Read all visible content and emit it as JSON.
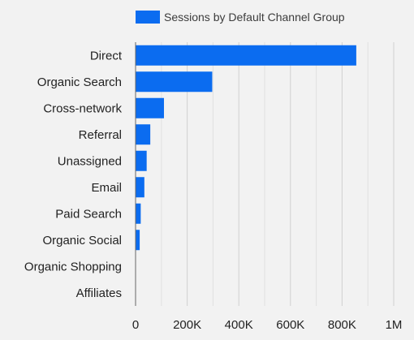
{
  "chart_data": {
    "type": "bar",
    "orientation": "horizontal",
    "title": "",
    "xlabel": "",
    "ylabel": "",
    "legend": {
      "placement": "top",
      "entries": [
        "Sessions by Default Channel Group"
      ]
    },
    "grid": true,
    "categories": [
      "Direct",
      "Organic Search",
      "Cross-network",
      "Referral",
      "Unassigned",
      "Email",
      "Paid Search",
      "Organic Social",
      "Organic Shopping",
      "Affiliates"
    ],
    "series": [
      {
        "name": "Sessions by Default Channel Group",
        "color": "#0b6cf0",
        "values": [
          855000,
          297000,
          110000,
          57000,
          43000,
          34000,
          20000,
          16000,
          1200,
          300
        ]
      }
    ],
    "xlim": [
      0,
      1000000
    ],
    "xticks": [
      0,
      200000,
      400000,
      600000,
      800000,
      1000000
    ],
    "xtick_labels": [
      "0",
      "200K",
      "400K",
      "600K",
      "800K",
      "1M"
    ]
  }
}
